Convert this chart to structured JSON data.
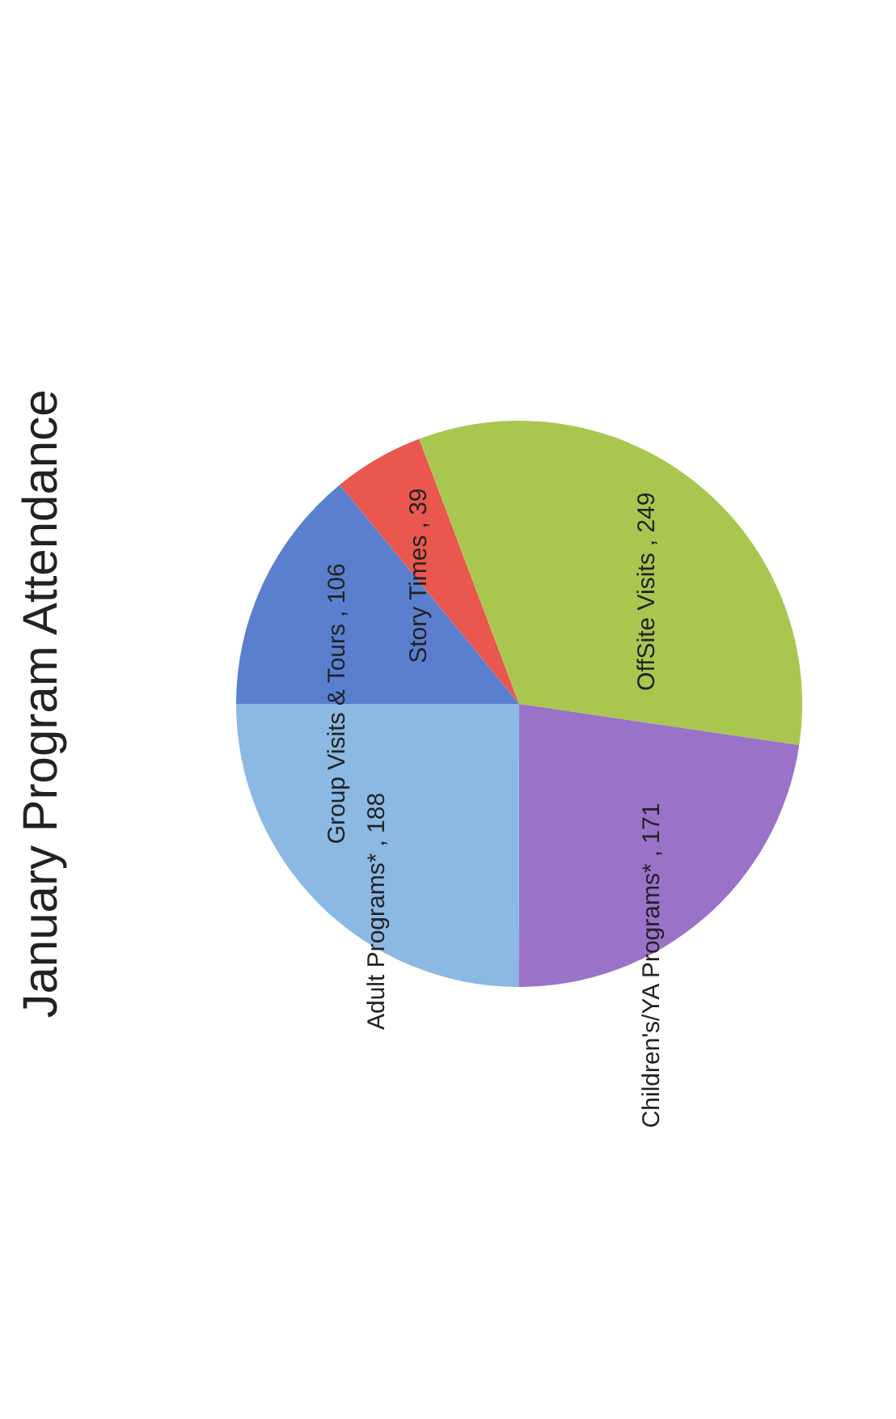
{
  "chart_data": {
    "type": "pie",
    "title": "January Program Attendance",
    "categories": [
      "Group Visits & Tours",
      "Story Times",
      "OffSite Visits",
      "Children's/YA Programs*",
      "Adult Programs*"
    ],
    "values": [
      106,
      39,
      249,
      171,
      188
    ],
    "colors": [
      "#5b7fcf",
      "#e9574f",
      "#a9c74f",
      "#9a72c8",
      "#8cb8e4"
    ],
    "value_labels": [
      ", 106",
      ", 39",
      ", 249",
      ", 171",
      ", 188"
    ],
    "legend": false
  }
}
